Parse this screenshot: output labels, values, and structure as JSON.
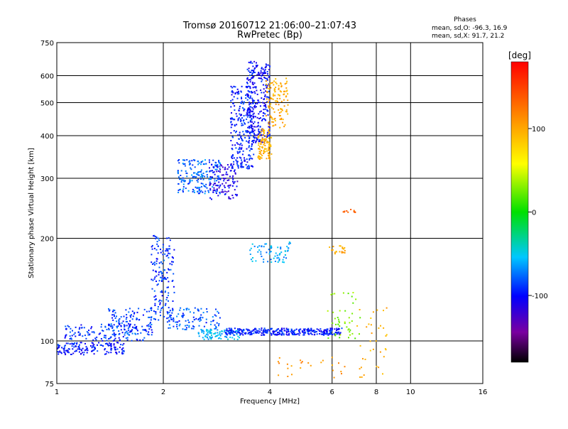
{
  "chart_data": {
    "type": "scatter",
    "title": "Tromsø 20160712 21:06:00–21:07:43",
    "subtitle": "RwPretec (Bp)",
    "xlabel": "Frequency [MHz]",
    "ylabel": "Stationary phase Virtual Height [km]",
    "x_scale": "log",
    "y_scale": "log",
    "xlim": [
      1,
      16
    ],
    "ylim": [
      75,
      750
    ],
    "x_ticks": [
      "1",
      "2",
      "4",
      "6",
      "8",
      "10",
      "16"
    ],
    "y_ticks": [
      "75",
      "100",
      "200",
      "300",
      "400",
      "500",
      "600",
      "750"
    ],
    "grid": true,
    "stats": {
      "heading": "Phases",
      "line_o": "mean, sd,O: -96.3, 16.9",
      "line_x": "mean, sd,X:  91.7, 21.2"
    },
    "colorbar": {
      "label": "[deg]",
      "range": [
        -180,
        180
      ],
      "ticks": [
        "100",
        "0",
        "-100"
      ],
      "tick_values": [
        100,
        0,
        -100
      ]
    },
    "groups": [
      {
        "x_range": [
          1.0,
          1.55
        ],
        "h_range": [
          91,
          99
        ],
        "phase": -108,
        "count": 160
      },
      {
        "x_range": [
          1.05,
          1.8
        ],
        "h_range": [
          100,
          112
        ],
        "phase": -102,
        "count": 130
      },
      {
        "x_range": [
          1.4,
          1.9
        ],
        "h_range": [
          104,
          125
        ],
        "phase": -98,
        "count": 120
      },
      {
        "x_range": [
          1.85,
          2.15
        ],
        "h_range": [
          115,
          205
        ],
        "phase": -100,
        "count": 160
      },
      {
        "x_range": [
          2.05,
          2.9
        ],
        "h_range": [
          108,
          125
        ],
        "phase": -95,
        "count": 110
      },
      {
        "x_range": [
          2.5,
          3.3
        ],
        "h_range": [
          101,
          108
        ],
        "phase": -70,
        "count": 90
      },
      {
        "x_range": [
          3.0,
          6.4
        ],
        "h_range": [
          104,
          109
        ],
        "phase": -105,
        "count": 340
      },
      {
        "x_range": [
          2.2,
          2.9
        ],
        "h_range": [
          270,
          340
        ],
        "phase": -90,
        "count": 200
      },
      {
        "x_range": [
          2.7,
          3.25
        ],
        "h_range": [
          260,
          330
        ],
        "phase": -120,
        "count": 110
      },
      {
        "x_range": [
          3.1,
          3.6
        ],
        "h_range": [
          320,
          560
        ],
        "phase": -105,
        "count": 260
      },
      {
        "x_range": [
          3.45,
          4.0
        ],
        "h_range": [
          380,
          660
        ],
        "phase": -110,
        "count": 300
      },
      {
        "x_range": [
          3.7,
          4.05
        ],
        "h_range": [
          340,
          420
        ],
        "phase": 95,
        "count": 110
      },
      {
        "x_range": [
          3.9,
          4.5
        ],
        "h_range": [
          420,
          590
        ],
        "phase": 100,
        "count": 120
      },
      {
        "x_range": [
          3.5,
          4.6
        ],
        "h_range": [
          170,
          195
        ],
        "phase": -75,
        "count": 70
      },
      {
        "x_range": [
          5.8,
          7.2
        ],
        "h_range": [
          100,
          140
        ],
        "phase": 30,
        "count": 45
      },
      {
        "x_range": [
          7.0,
          8.6
        ],
        "h_range": [
          78,
          125
        ],
        "phase": 95,
        "count": 35
      },
      {
        "x_range": [
          4.2,
          6.8
        ],
        "h_range": [
          78,
          90
        ],
        "phase": 110,
        "count": 25
      },
      {
        "x_range": [
          5.8,
          6.6
        ],
        "h_range": [
          180,
          190
        ],
        "phase": 95,
        "count": 20
      },
      {
        "x_range": [
          6.4,
          7.0
        ],
        "h_range": [
          238,
          243
        ],
        "phase": 140,
        "count": 12
      }
    ]
  }
}
